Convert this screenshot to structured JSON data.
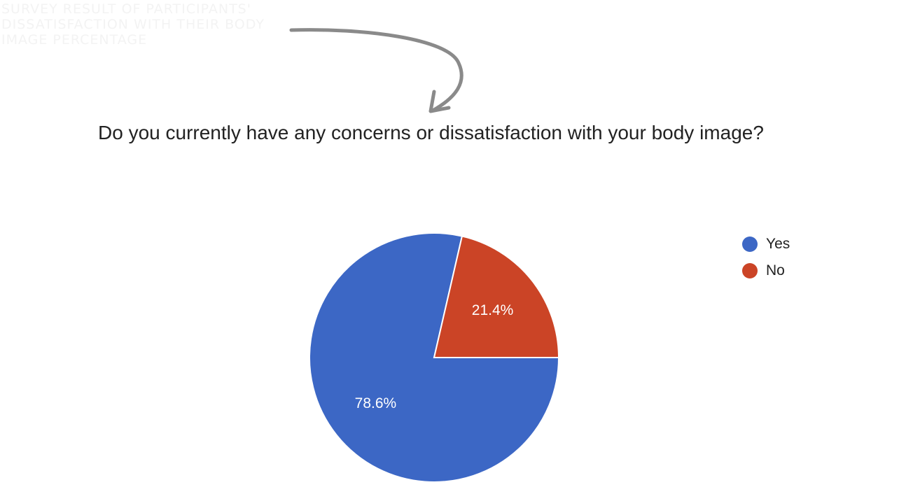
{
  "caption": {
    "lines": [
      "SURVEY RESULT OF PARTICIPANTS'",
      "DISSATISFACTION WITH THEIR BODY",
      "IMAGE PERCENTAGE"
    ]
  },
  "chart_data": {
    "type": "pie",
    "title": "Do you currently have any concerns or dissatisfaction with your body image?",
    "legend_position": "right",
    "slices": [
      {
        "name": "Yes",
        "value": 78.6,
        "label": "78.6%",
        "color": "#3c67c5"
      },
      {
        "name": "No",
        "value": 21.4,
        "label": "21.4%",
        "color": "#cb4426"
      }
    ]
  }
}
